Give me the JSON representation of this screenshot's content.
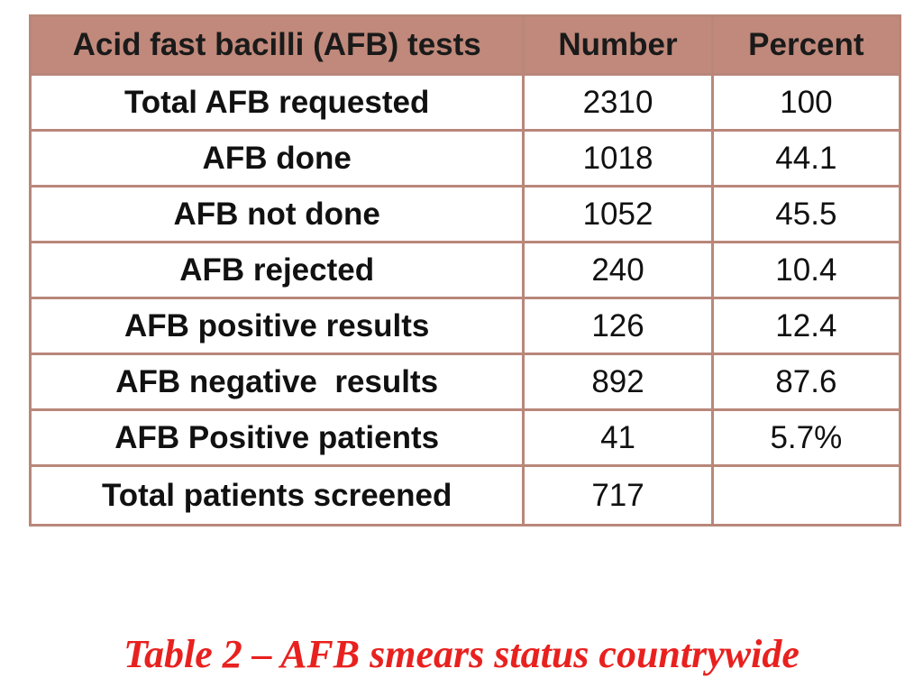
{
  "table": {
    "headers": [
      "Acid fast bacilli (AFB) tests",
      "Number",
      "Percent"
    ],
    "rows": [
      {
        "test": "Total AFB requested",
        "number": "2310",
        "percent": "100"
      },
      {
        "test": "AFB done",
        "number": "1018",
        "percent": "44.1"
      },
      {
        "test": "AFB not done",
        "number": "1052",
        "percent": "45.5"
      },
      {
        "test": "AFB rejected",
        "number": "240",
        "percent": "10.4"
      },
      {
        "test": "AFB positive results",
        "number": "126",
        "percent": "12.4"
      },
      {
        "test": "AFB negative  results",
        "number": "892",
        "percent": "87.6"
      },
      {
        "test": "AFB Positive patients",
        "number": "41",
        "percent": "5.7%"
      },
      {
        "test": "Total patients screened",
        "number": "717",
        "percent": ""
      }
    ]
  },
  "caption": "Table 2 – AFB smears status countrywide",
  "colors": {
    "header_bg": "#c0897b",
    "border": "#b9877a",
    "caption": "#e8211f"
  }
}
